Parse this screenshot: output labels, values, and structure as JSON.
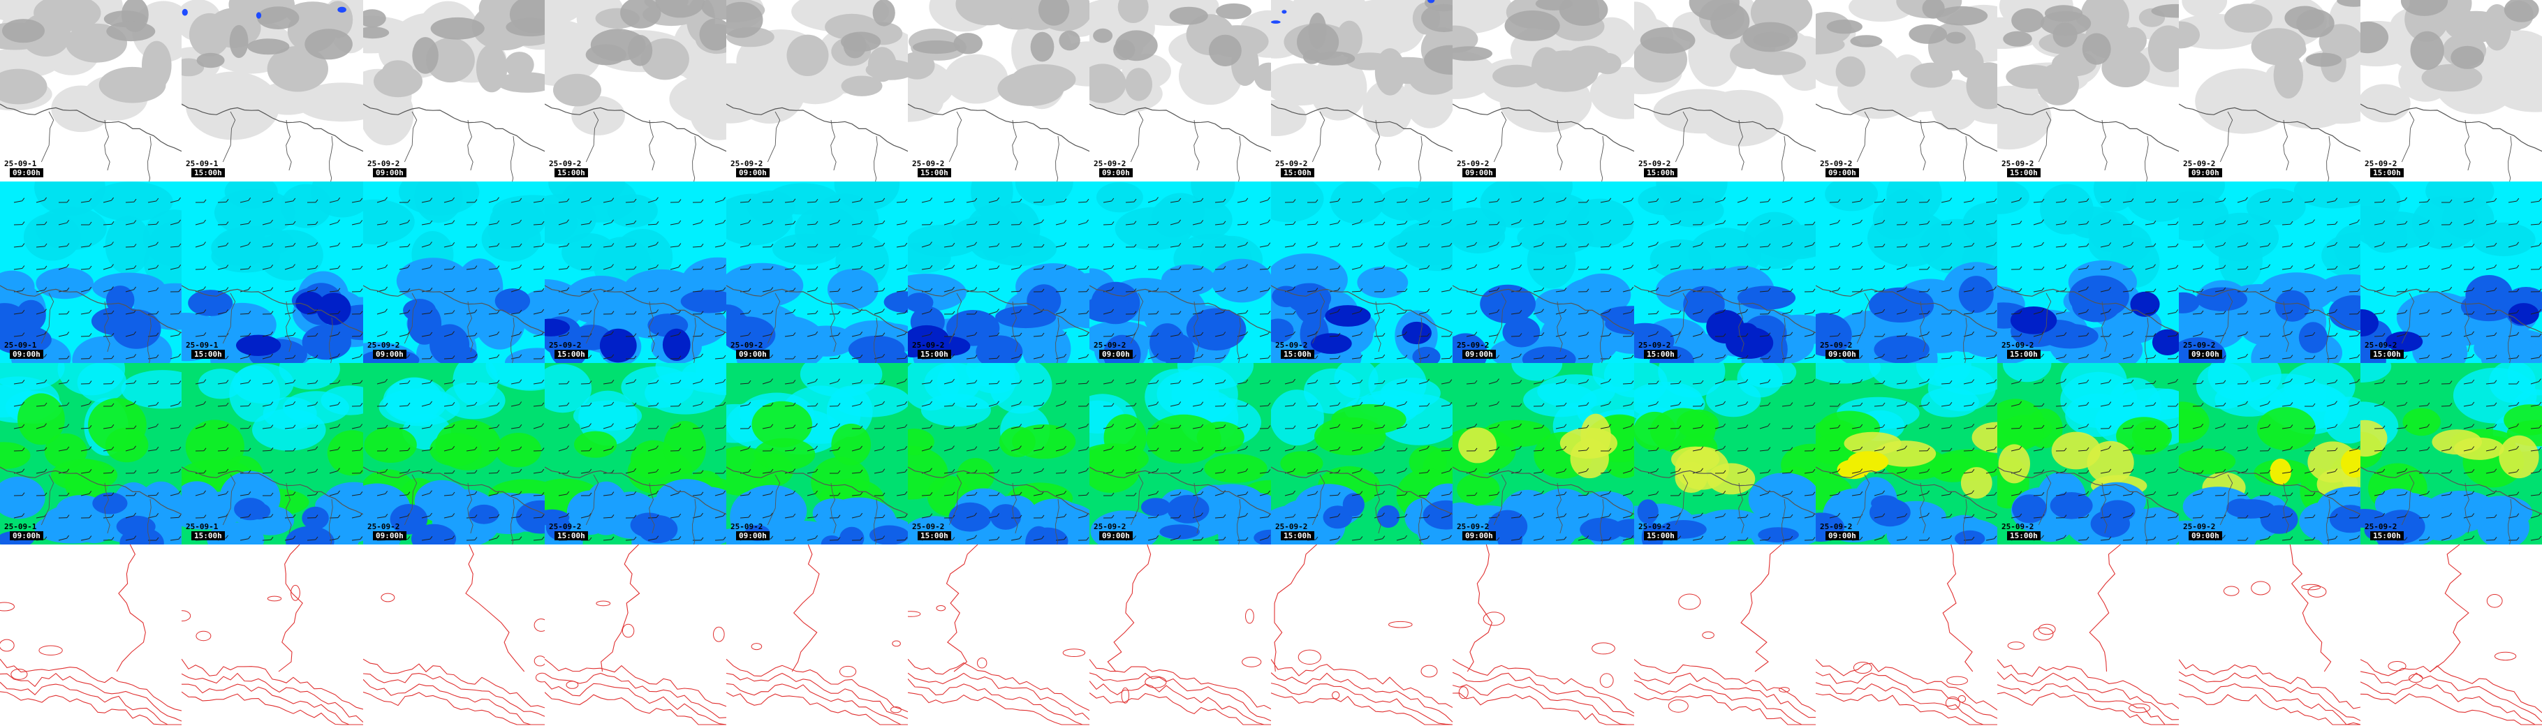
{
  "rows": [
    {
      "id": "cloud",
      "kind": "cloud"
    },
    {
      "id": "wind-low",
      "kind": "wind"
    },
    {
      "id": "wind-high",
      "kind": "wind"
    },
    {
      "id": "contour",
      "kind": "contour"
    }
  ],
  "columns": [
    {
      "date": "25-09-1",
      "time": "09:00h"
    },
    {
      "date": "25-09-1",
      "time": "15:00h"
    },
    {
      "date": "25-09-2",
      "time": "09:00h"
    },
    {
      "date": "25-09-2",
      "time": "15:00h"
    },
    {
      "date": "25-09-2",
      "time": "09:00h"
    },
    {
      "date": "25-09-2",
      "time": "15:00h"
    },
    {
      "date": "25-09-2",
      "time": "09:00h"
    },
    {
      "date": "25-09-2",
      "time": "15:00h"
    },
    {
      "date": "25-09-2",
      "time": "09:00h"
    },
    {
      "date": "25-09-2",
      "time": "15:00h"
    },
    {
      "date": "25-09-2",
      "time": "09:00h"
    },
    {
      "date": "25-09-2",
      "time": "15:00h"
    },
    {
      "date": "25-09-2",
      "time": "09:00h"
    },
    {
      "date": "25-09-2",
      "time": "15:00h"
    }
  ],
  "colors": {
    "cloud_bg": "#ffffff",
    "cloud_light": "#e2e2e2",
    "cloud_mid": "#c4c4c4",
    "cloud_dark": "#a8a8a8",
    "precip": "#1e4bff",
    "coast": "#555555",
    "wind_cyan": "#00f0ff",
    "wind_lightcyan": "#00e0f0",
    "wind_blue1": "#1aa0ff",
    "wind_blue2": "#1060e8",
    "wind_blue3": "#0020c8",
    "wind_green1": "#00e070",
    "wind_green2": "#10f020",
    "wind_yellow": "#d8f040",
    "wind_yellow2": "#f0f000",
    "barb": "#202020",
    "contour": "#e03030"
  }
}
